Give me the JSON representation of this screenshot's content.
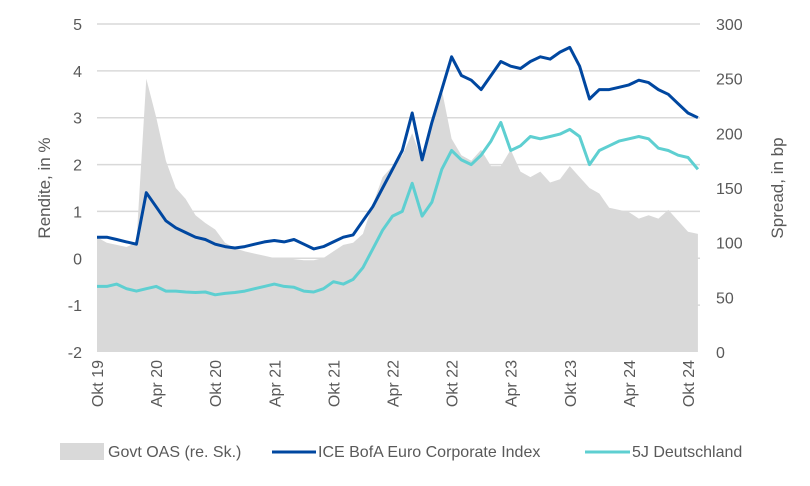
{
  "chart_data": {
    "type": "line",
    "title": "",
    "xlabel": "",
    "ylabel": "Rendite, in %",
    "y2label": "Spread, in bp",
    "ylim": [
      -2,
      5
    ],
    "y2lim": [
      0,
      300
    ],
    "yticks": [
      "-2",
      "-1",
      "0",
      "1",
      "2",
      "3",
      "4",
      "5"
    ],
    "y2ticks": [
      "0",
      "50",
      "100",
      "150",
      "200",
      "250",
      "300"
    ],
    "xtick_labels": [
      "Okt 19",
      "Apr 20",
      "Okt 20",
      "Apr 21",
      "Okt 21",
      "Apr 22",
      "Okt 22",
      "Apr 23",
      "Okt 23",
      "Apr 24",
      "Okt 24"
    ],
    "grid": true,
    "legend_position": "bottom",
    "x": [
      "Okt 19",
      "Nov 19",
      "Dez 19",
      "Jan 20",
      "Feb 20",
      "Mär 20",
      "Apr 20",
      "Mai 20",
      "Jun 20",
      "Jul 20",
      "Aug 20",
      "Sep 20",
      "Okt 20",
      "Nov 20",
      "Dez 20",
      "Jan 21",
      "Feb 21",
      "Mär 21",
      "Apr 21",
      "Mai 21",
      "Jun 21",
      "Jul 21",
      "Aug 21",
      "Sep 21",
      "Okt 21",
      "Nov 21",
      "Dez 21",
      "Jan 22",
      "Feb 22",
      "Mär 22",
      "Apr 22",
      "Mai 22",
      "Jun 22",
      "Jul 22",
      "Aug 22",
      "Sep 22",
      "Okt 22",
      "Nov 22",
      "Dez 22",
      "Jan 23",
      "Feb 23",
      "Mär 23",
      "Apr 23",
      "Mai 23",
      "Jun 23",
      "Jul 23",
      "Aug 23",
      "Sep 23",
      "Okt 23",
      "Nov 23",
      "Dez 23",
      "Jan 24",
      "Feb 24",
      "Mär 24",
      "Apr 24",
      "Mai 24",
      "Jun 24",
      "Jul 24",
      "Aug 24",
      "Sep 24",
      "Okt 24",
      "Nov 24"
    ],
    "series": [
      {
        "name": "Govt OAS (re. Sk.)",
        "type": "area",
        "axis": "right",
        "color": "#d9d9d9",
        "values": [
          105,
          100,
          98,
          96,
          100,
          250,
          215,
          175,
          150,
          140,
          125,
          118,
          112,
          100,
          95,
          92,
          90,
          88,
          86,
          86,
          85,
          84,
          84,
          86,
          92,
          98,
          100,
          108,
          135,
          160,
          170,
          180,
          200,
          175,
          205,
          240,
          195,
          180,
          175,
          185,
          170,
          170,
          185,
          165,
          160,
          165,
          155,
          158,
          170,
          160,
          150,
          145,
          132,
          130,
          128,
          122,
          125,
          122,
          130,
          120,
          110,
          108
        ]
      },
      {
        "name": "ICE BofA Euro Corporate Index",
        "type": "line",
        "axis": "left",
        "color": "#0047a0",
        "values": [
          0.45,
          0.45,
          0.4,
          0.35,
          0.3,
          1.4,
          1.1,
          0.8,
          0.65,
          0.55,
          0.45,
          0.4,
          0.3,
          0.25,
          0.22,
          0.25,
          0.3,
          0.35,
          0.38,
          0.35,
          0.4,
          0.3,
          0.2,
          0.25,
          0.35,
          0.45,
          0.5,
          0.8,
          1.1,
          1.5,
          1.9,
          2.3,
          3.1,
          2.1,
          2.9,
          3.6,
          4.3,
          3.9,
          3.8,
          3.6,
          3.9,
          4.2,
          4.1,
          4.05,
          4.2,
          4.3,
          4.25,
          4.4,
          4.5,
          4.1,
          3.4,
          3.6,
          3.6,
          3.65,
          3.7,
          3.8,
          3.75,
          3.6,
          3.5,
          3.3,
          3.1,
          3.0
        ]
      },
      {
        "name": "5J Deutschland",
        "type": "line",
        "axis": "left",
        "color": "#5ecfd1",
        "values": [
          -0.6,
          -0.6,
          -0.55,
          -0.65,
          -0.7,
          -0.65,
          -0.6,
          -0.7,
          -0.7,
          -0.72,
          -0.73,
          -0.72,
          -0.78,
          -0.75,
          -0.73,
          -0.7,
          -0.65,
          -0.6,
          -0.55,
          -0.6,
          -0.62,
          -0.7,
          -0.72,
          -0.65,
          -0.5,
          -0.55,
          -0.45,
          -0.2,
          0.2,
          0.6,
          0.9,
          1.0,
          1.6,
          0.9,
          1.2,
          1.9,
          2.3,
          2.1,
          2.0,
          2.2,
          2.5,
          2.9,
          2.3,
          2.4,
          2.6,
          2.55,
          2.6,
          2.65,
          2.75,
          2.6,
          2.0,
          2.3,
          2.4,
          2.5,
          2.55,
          2.6,
          2.55,
          2.35,
          2.3,
          2.2,
          2.15,
          1.9
        ]
      }
    ]
  }
}
